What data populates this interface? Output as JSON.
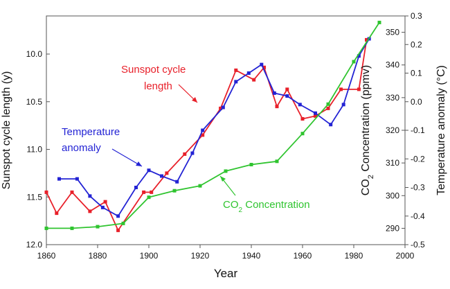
{
  "chart_data": {
    "type": "line",
    "xlabel": "Year",
    "x_ticks": [
      1860,
      1880,
      1900,
      1920,
      1940,
      1960,
      1980,
      2000
    ],
    "xlim": [
      1860,
      2000
    ],
    "axes": {
      "left": {
        "label": "Sunspot cycle length (y)",
        "ylim": [
          12.0,
          9.6
        ],
        "inverted": true,
        "ticks": [
          "10.0",
          "10.5",
          "11.0",
          "11.5",
          "12.0"
        ]
      },
      "co2": {
        "label_main": "CO",
        "label_sub": "2",
        "label_rest": " Concentration (ppmv)",
        "ylim": [
          285,
          355
        ],
        "ticks": [
          "290",
          "300",
          "310",
          "320",
          "330",
          "340",
          "350"
        ]
      },
      "right": {
        "label": "Temperature anomaly (°C)",
        "ylim": [
          -0.5,
          0.3
        ],
        "ticks": [
          "0.3",
          "0.2",
          "0.1",
          "0.0",
          "-0.1",
          "-0.2",
          "-0.3",
          "-0.4",
          "-0.5"
        ]
      }
    },
    "series": [
      {
        "name": "Sunspot cycle length",
        "axis": "left",
        "color": "#e8202a",
        "x": [
          1860,
          1864,
          1870,
          1877,
          1883,
          1888,
          1898,
          1901,
          1907,
          1914,
          1921,
          1928,
          1934,
          1941,
          1945,
          1950,
          1954,
          1960,
          1965,
          1970,
          1975,
          1982,
          1985
        ],
        "y": [
          11.45,
          11.67,
          11.45,
          11.65,
          11.55,
          11.85,
          11.45,
          11.45,
          11.25,
          11.05,
          10.85,
          10.57,
          10.17,
          10.27,
          10.14,
          10.55,
          10.37,
          10.68,
          10.65,
          10.57,
          10.37,
          10.37,
          9.85
        ]
      },
      {
        "name": "Temperature anomaly",
        "axis": "right",
        "color": "#2323d4",
        "x": [
          1865,
          1872,
          1877,
          1882,
          1888,
          1895,
          1900,
          1905,
          1911,
          1917,
          1921,
          1929,
          1934,
          1939,
          1944,
          1949,
          1954,
          1959,
          1965,
          1971,
          1976,
          1982,
          1986
        ],
        "y": [
          -0.27,
          -0.27,
          -0.33,
          -0.37,
          -0.4,
          -0.3,
          -0.24,
          -0.26,
          -0.28,
          -0.18,
          -0.1,
          -0.02,
          0.07,
          0.1,
          0.13,
          0.03,
          0.02,
          -0.01,
          -0.04,
          -0.08,
          -0.01,
          0.16,
          0.22
        ]
      },
      {
        "name": "CO2 Concentration",
        "axis": "co2",
        "color": "#2fc42f",
        "x": [
          1860,
          1870,
          1880,
          1890,
          1900,
          1910,
          1920,
          1930,
          1940,
          1950,
          1960,
          1970,
          1980,
          1990
        ],
        "y": [
          290,
          290,
          290.5,
          291.5,
          299.5,
          301.5,
          303,
          307.5,
          309.5,
          310.5,
          319,
          328,
          341,
          353
        ]
      }
    ],
    "annotations": [
      {
        "id": "sunspot",
        "lines": [
          "Sunspot cycle",
          "length"
        ],
        "color": "#e8202a"
      },
      {
        "id": "temperature",
        "lines": [
          "Temperature",
          "anomaly"
        ],
        "color": "#2323d4"
      },
      {
        "id": "co2",
        "main": "CO",
        "sub": "2",
        "rest": " Concentration",
        "color": "#2fc42f"
      }
    ],
    "grid": false,
    "legend": "none"
  }
}
